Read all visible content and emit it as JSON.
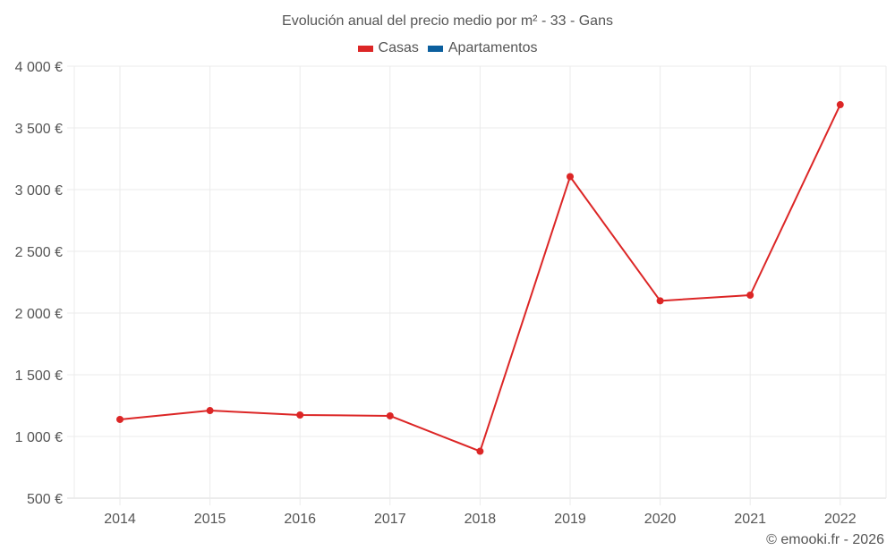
{
  "title": "Evolución anual del precio medio por m² - 33 - Gans",
  "legend": [
    {
      "label": "Casas",
      "color": "#dc2626"
    },
    {
      "label": "Apartamentos",
      "color": "#0b5f9e"
    }
  ],
  "credit": "© emooki.fr - 2026",
  "y_tick_labels": [
    "4 000 €",
    "3 500 €",
    "3 000 €",
    "2 500 €",
    "2 000 €",
    "1 500 €",
    "1 000 €",
    "500 €"
  ],
  "x_tick_labels": [
    "2014",
    "2015",
    "2016",
    "2017",
    "2018",
    "2019",
    "2020",
    "2021",
    "2022"
  ],
  "chart_data": {
    "type": "line",
    "title": "Evolución anual del precio medio por m² - 33 - Gans",
    "xlabel": "",
    "ylabel": "",
    "x": [
      "2014",
      "2015",
      "2016",
      "2017",
      "2018",
      "2019",
      "2020",
      "2021",
      "2022"
    ],
    "series": [
      {
        "name": "Casas",
        "color": "#dc2626",
        "values": [
          1138,
          1210,
          1174,
          1167,
          880,
          3105,
          2099,
          2145,
          3688
        ]
      },
      {
        "name": "Apartamentos",
        "color": "#0b5f9e",
        "values": []
      }
    ],
    "ylim": [
      500,
      4000
    ],
    "yticks": [
      500,
      1000,
      1500,
      2000,
      2500,
      3000,
      3500,
      4000
    ],
    "grid": true,
    "legend_position": "top"
  }
}
